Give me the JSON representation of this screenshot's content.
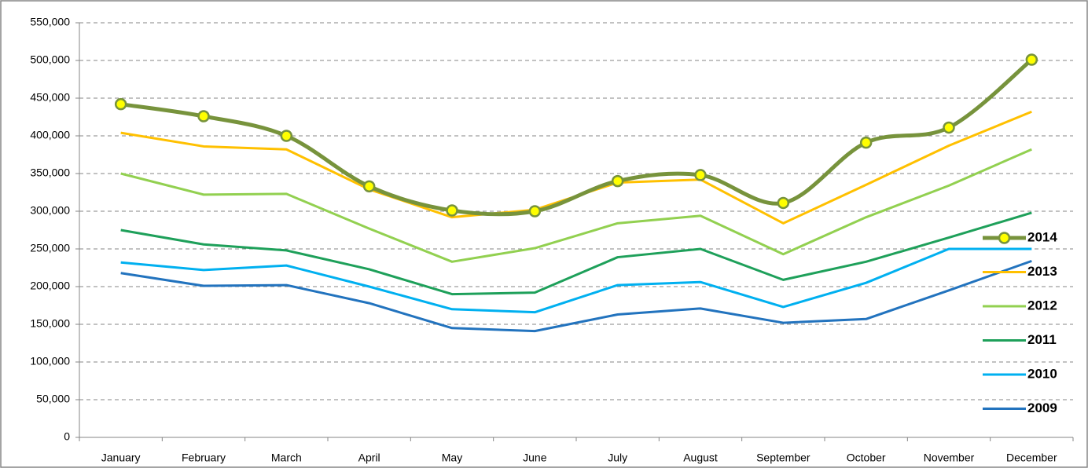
{
  "chart_data": {
    "type": "line",
    "categories": [
      "January",
      "February",
      "March",
      "April",
      "May",
      "June",
      "July",
      "August",
      "September",
      "October",
      "November",
      "December"
    ],
    "series": [
      {
        "name": "2014",
        "color": "#77933c",
        "smooth": true,
        "marker_color": "#ffff00",
        "values": [
          442000,
          426000,
          400000,
          333000,
          301000,
          300000,
          340000,
          348000,
          311000,
          391000,
          411000,
          501000
        ]
      },
      {
        "name": "2013",
        "color": "#ffc000",
        "values": [
          404000,
          386000,
          382000,
          329000,
          292000,
          302000,
          338000,
          342000,
          284000,
          335000,
          387000,
          432000
        ]
      },
      {
        "name": "2012",
        "color": "#92d050",
        "values": [
          350000,
          322000,
          323000,
          277000,
          233000,
          251000,
          284000,
          294000,
          243000,
          292000,
          334000,
          382000
        ]
      },
      {
        "name": "2011",
        "color": "#1ea05a",
        "values": [
          275000,
          256000,
          248000,
          223000,
          190000,
          192000,
          239000,
          250000,
          209000,
          233000,
          265000,
          298000
        ]
      },
      {
        "name": "2010",
        "color": "#00b0f0",
        "values": [
          232000,
          222000,
          228000,
          200000,
          170000,
          166000,
          202000,
          206000,
          173000,
          205000,
          250000,
          250000
        ]
      },
      {
        "name": "2009",
        "color": "#2273be",
        "values": [
          218000,
          201000,
          202000,
          178000,
          145000,
          141000,
          163000,
          171000,
          152000,
          157000,
          195000,
          234000
        ]
      }
    ],
    "ylim": [
      0,
      550000
    ],
    "yticks": [
      0,
      {
        "value": 50000,
        "label": "50,000"
      },
      {
        "value": 100000,
        "label": "100,000"
      },
      {
        "value": 150000,
        "label": "150,000"
      },
      {
        "value": 200000,
        "label": "200,000"
      },
      {
        "value": 250000,
        "label": "250,000"
      },
      {
        "value": 300000,
        "label": "300,000"
      },
      {
        "value": 350000,
        "label": "350,000"
      },
      {
        "value": 400000,
        "label": "400,000"
      },
      {
        "value": 450000,
        "label": "450,000"
      },
      {
        "value": 500000,
        "label": "500,000"
      },
      {
        "value": 550000,
        "label": "550,000"
      }
    ],
    "grid": true,
    "legend": "right"
  }
}
